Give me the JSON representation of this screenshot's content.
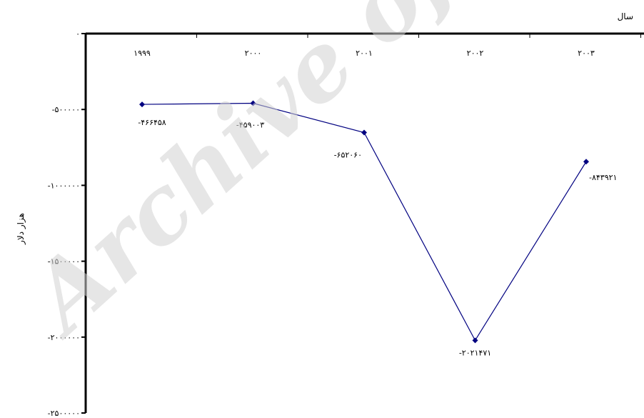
{
  "chart_data": {
    "type": "line",
    "categories": [
      "۱۹۹۹",
      "۲۰۰۰",
      "۲۰۰۱",
      "۲۰۰۲",
      "۲۰۰۳"
    ],
    "series": [
      {
        "values": [
          -466458,
          -459003,
          -652060,
          -2021471,
          -843921
        ],
        "labels": [
          "-۴۶۶۴۵۸",
          "-۴۵۹۰۰۳",
          "-۶۵۲۰۶۰",
          "-۲۰۲۱۴۷۱",
          "-۸۴۳۹۲۱"
        ],
        "color": "#000080"
      }
    ],
    "xlabel": "سال",
    "ylabel": "هزار دلار",
    "ylim": [
      -2500000,
      0
    ],
    "yticks": [
      0,
      -500000,
      -1000000,
      -1500000,
      -2000000,
      -2500000
    ],
    "ytick_labels": [
      "۰",
      "-۵۰۰۰۰۰",
      "-۱۰۰۰۰۰۰",
      "-۱۵۰۰۰۰۰",
      "-۲۰۰۰۰۰۰",
      "-۲۵۰۰۰۰۰"
    ],
    "x_axis_position": "top",
    "grid": false,
    "legend": "none"
  },
  "watermark": "Archive of"
}
